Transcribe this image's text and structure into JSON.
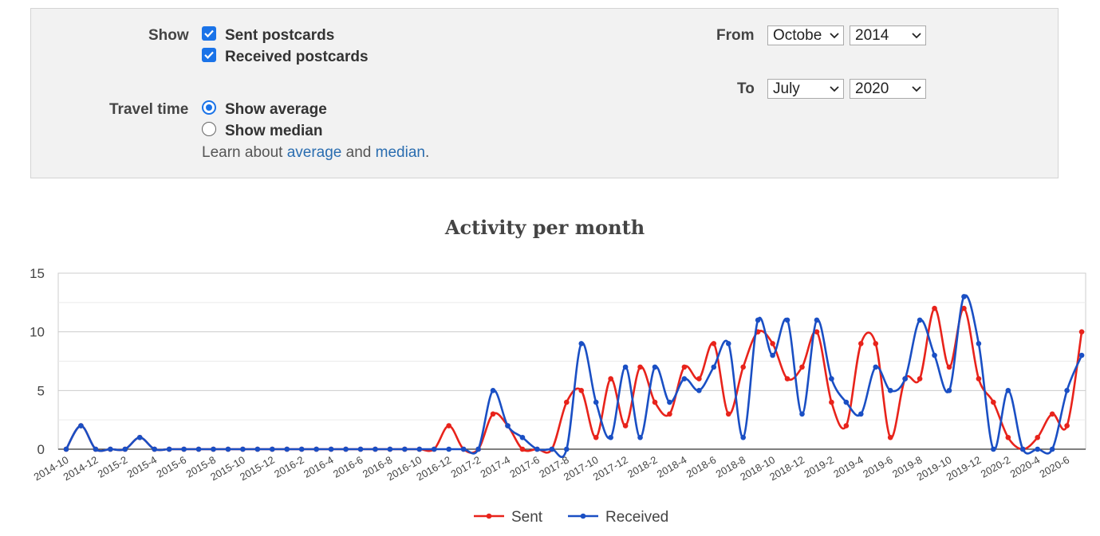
{
  "filters": {
    "show_label": "Show",
    "sent_label": "Sent postcards",
    "received_label": "Received postcards",
    "travel_label": "Travel time",
    "average_label": "Show average",
    "median_label": "Show median",
    "learn_prefix": "Learn about",
    "learn_average": "average",
    "learn_and": "and",
    "learn_median": "median",
    "learn_suffix": ".",
    "from_label": "From",
    "from_month": "Octobe",
    "from_year": "2014",
    "to_label": "To",
    "to_month": "July",
    "to_year": "2020"
  },
  "chart_data": {
    "type": "line",
    "title": "Activity per month",
    "xlabel": "",
    "ylabel": "",
    "ylim": [
      0,
      15
    ],
    "yticks": [
      0,
      5,
      10,
      15
    ],
    "grid": true,
    "legend_position": "bottom",
    "categories": [
      "2014-10",
      "2014-11",
      "2014-12",
      "2015-1",
      "2015-2",
      "2015-3",
      "2015-4",
      "2015-5",
      "2015-6",
      "2015-7",
      "2015-8",
      "2015-9",
      "2015-10",
      "2015-11",
      "2015-12",
      "2016-1",
      "2016-2",
      "2016-3",
      "2016-4",
      "2016-5",
      "2016-6",
      "2016-7",
      "2016-8",
      "2016-9",
      "2016-10",
      "2016-11",
      "2016-12",
      "2017-1",
      "2017-2",
      "2017-3",
      "2017-4",
      "2017-5",
      "2017-6",
      "2017-7",
      "2017-8",
      "2017-9",
      "2017-10",
      "2017-11",
      "2017-12",
      "2018-1",
      "2018-2",
      "2018-3",
      "2018-4",
      "2018-5",
      "2018-6",
      "2018-7",
      "2018-8",
      "2018-9",
      "2018-10",
      "2018-11",
      "2018-12",
      "2019-1",
      "2019-2",
      "2019-3",
      "2019-4",
      "2019-5",
      "2019-6",
      "2019-7",
      "2019-8",
      "2019-9",
      "2019-10",
      "2019-11",
      "2019-12",
      "2020-1",
      "2020-2",
      "2020-3",
      "2020-4",
      "2020-5",
      "2020-6",
      "2020-7"
    ],
    "xticklabels": [
      "2014-10",
      "2014-12",
      "2015-2",
      "2015-4",
      "2015-6",
      "2015-8",
      "2015-10",
      "2015-12",
      "2016-2",
      "2016-4",
      "2016-6",
      "2016-8",
      "2016-10",
      "2016-12",
      "2017-2",
      "2017-4",
      "2017-6",
      "2017-8",
      "2017-10",
      "2017-12",
      "2018-2",
      "2018-4",
      "2018-6",
      "2018-8",
      "2018-10",
      "2018-12",
      "2019-2",
      "2019-4",
      "2019-6",
      "2019-8",
      "2019-10",
      "2019-12",
      "2020-2",
      "2020-4",
      "2020-6"
    ],
    "series": [
      {
        "name": "Sent",
        "color": "#e8231b",
        "values": [
          0,
          2,
          0,
          0,
          0,
          1,
          0,
          0,
          0,
          0,
          0,
          0,
          0,
          0,
          0,
          0,
          0,
          0,
          0,
          0,
          0,
          0,
          0,
          0,
          0,
          0,
          2,
          0,
          0,
          3,
          2,
          0,
          0,
          0,
          4,
          5,
          1,
          6,
          2,
          7,
          4,
          3,
          7,
          6,
          9,
          3,
          7,
          10,
          9,
          6,
          7,
          10,
          4,
          2,
          9,
          9,
          1,
          6,
          6,
          12,
          7,
          12,
          6,
          4,
          1,
          0,
          1,
          3,
          2,
          10
        ]
      },
      {
        "name": "Received",
        "color": "#1a4fc4",
        "values": [
          0,
          2,
          0,
          0,
          0,
          1,
          0,
          0,
          0,
          0,
          0,
          0,
          0,
          0,
          0,
          0,
          0,
          0,
          0,
          0,
          0,
          0,
          0,
          0,
          0,
          0,
          0,
          0,
          0,
          5,
          2,
          1,
          0,
          0,
          0,
          9,
          4,
          1,
          7,
          1,
          7,
          4,
          6,
          5,
          7,
          9,
          1,
          11,
          8,
          11,
          3,
          11,
          6,
          4,
          3,
          7,
          5,
          6,
          11,
          8,
          5,
          13,
          9,
          0,
          5,
          0,
          0,
          0,
          5,
          8
        ]
      }
    ]
  }
}
